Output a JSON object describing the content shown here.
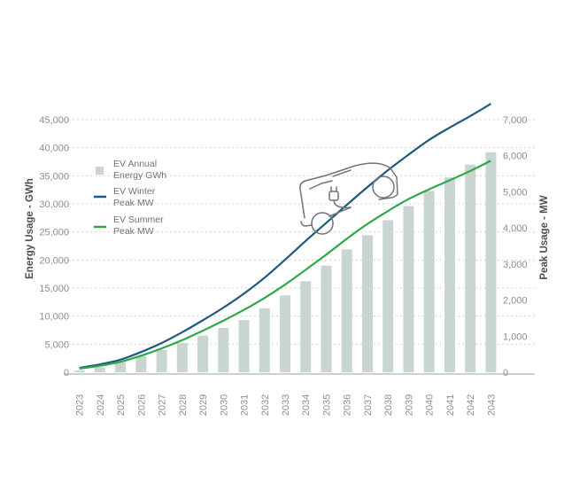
{
  "chart_data": {
    "type": "bar",
    "categories": [
      "2023",
      "2024",
      "2025",
      "2026",
      "2027",
      "2028",
      "2029",
      "2030",
      "2031",
      "2032",
      "2033",
      "2034",
      "2035",
      "2036",
      "2037",
      "2038",
      "2039",
      "2040",
      "2041",
      "2042",
      "2043"
    ],
    "y_left_label": "Energy Usage - GWh",
    "y_right_label": "Peak Usage - MW",
    "y_left_ticks": [
      "0",
      "5,000",
      "10,000",
      "15,000",
      "20,000",
      "25,000",
      "30,000",
      "35,000",
      "40,000",
      "45,000"
    ],
    "y_right_ticks": [
      "0",
      "1,000",
      "2,000",
      "3,000",
      "4,000",
      "5,000",
      "6,000",
      "7,000"
    ],
    "y_left_range": [
      0,
      45000
    ],
    "y_right_range": [
      0,
      7000
    ],
    "grid": true,
    "series": [
      {
        "name": "EV Annual Energy GWh",
        "kind": "bar",
        "axis": "left",
        "color": "#c9d5d1",
        "values": [
          300,
          900,
          1800,
          2900,
          4000,
          5200,
          6500,
          7900,
          9300,
          11400,
          13700,
          16200,
          19000,
          21900,
          24400,
          27100,
          29600,
          32300,
          34700,
          37000,
          39200
        ]
      },
      {
        "name": "EV Winter Peak MW",
        "kind": "line",
        "axis": "right",
        "color": "#1d5a7e",
        "values": [
          120,
          220,
          350,
          560,
          810,
          1110,
          1440,
          1790,
          2180,
          2620,
          3120,
          3640,
          4140,
          4640,
          5130,
          5600,
          6030,
          6440,
          6780,
          7100,
          7440
        ]
      },
      {
        "name": "EV Summer Peak MW",
        "kind": "line",
        "axis": "right",
        "color": "#2da84a",
        "values": [
          100,
          180,
          290,
          460,
          660,
          890,
          1150,
          1430,
          1730,
          2060,
          2430,
          2840,
          3260,
          3700,
          4110,
          4470,
          4800,
          5070,
          5320,
          5580,
          5860
        ]
      }
    ],
    "legend": {
      "position": "top-left",
      "items": [
        {
          "lines": [
            "EV Annual",
            "Energy GWh"
          ],
          "color": "#c9d5d1",
          "marker": "square"
        },
        {
          "lines": [
            "EV Winter",
            "Peak MW"
          ],
          "color": "#1d5a7e",
          "marker": "line"
        },
        {
          "lines": [
            "EV Summer",
            "Peak MW"
          ],
          "color": "#2da84a",
          "marker": "line"
        }
      ]
    },
    "decoration": "ev-car-plug-icon"
  }
}
